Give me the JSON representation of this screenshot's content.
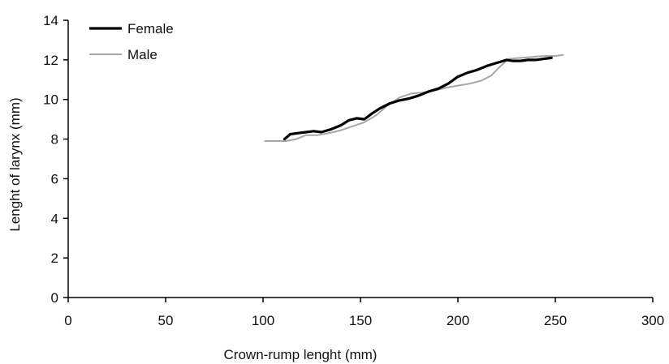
{
  "chart_data": {
    "type": "line",
    "title": "",
    "xlabel": "Crown-rump lenght (mm)",
    "ylabel": "Lenght of larynx (mm)",
    "xlim": [
      0,
      300
    ],
    "ylim": [
      0,
      14
    ],
    "xticks": [
      0,
      50,
      100,
      150,
      200,
      250,
      300
    ],
    "yticks": [
      0,
      2,
      4,
      6,
      8,
      10,
      12,
      14
    ],
    "grid": false,
    "legend_position": "top-left",
    "series": [
      {
        "name": "Female",
        "color": "#000000",
        "x": [
          111,
          114,
          118,
          122,
          126,
          130,
          135,
          140,
          144,
          148,
          152,
          156,
          160,
          165,
          170,
          175,
          180,
          185,
          190,
          195,
          200,
          205,
          210,
          215,
          220,
          225,
          228,
          232,
          236,
          240,
          244,
          248
        ],
        "y": [
          8.0,
          8.25,
          8.3,
          8.35,
          8.4,
          8.35,
          8.5,
          8.7,
          8.95,
          9.05,
          9.0,
          9.3,
          9.55,
          9.8,
          9.95,
          10.05,
          10.2,
          10.4,
          10.55,
          10.8,
          11.15,
          11.35,
          11.5,
          11.7,
          11.85,
          12.0,
          11.95,
          11.95,
          12.0,
          12.0,
          12.05,
          12.1
        ]
      },
      {
        "name": "Male",
        "color": "#a6a6a6",
        "x": [
          101,
          106,
          112,
          117,
          122,
          128,
          134,
          140,
          146,
          152,
          158,
          164,
          170,
          176,
          182,
          188,
          194,
          200,
          206,
          212,
          217,
          222,
          226,
          232,
          238,
          244,
          250,
          254
        ],
        "y": [
          7.9,
          7.9,
          7.9,
          8.0,
          8.2,
          8.2,
          8.3,
          8.45,
          8.65,
          8.85,
          9.2,
          9.7,
          10.1,
          10.3,
          10.35,
          10.45,
          10.6,
          10.7,
          10.8,
          10.95,
          11.2,
          11.7,
          12.05,
          12.1,
          12.15,
          12.2,
          12.2,
          12.25
        ]
      }
    ]
  }
}
